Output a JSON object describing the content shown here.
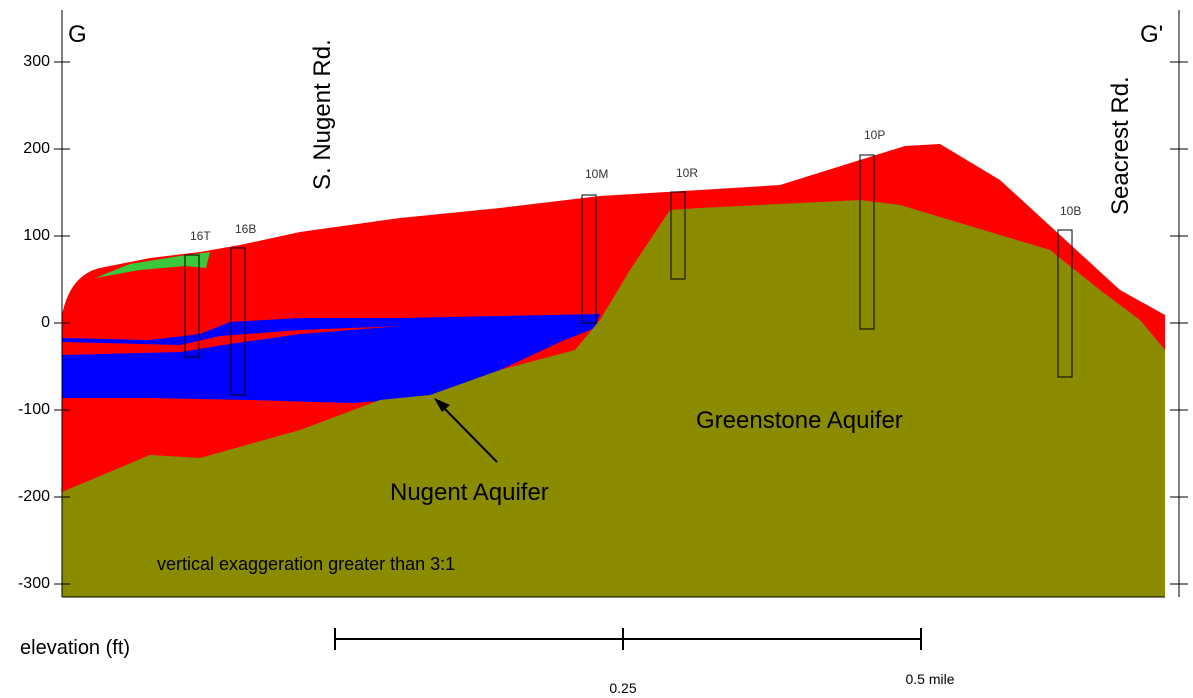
{
  "section": {
    "start_label": "G",
    "end_label": "G'"
  },
  "roads": [
    "S. Nugent Rd.",
    "Seacrest Rd."
  ],
  "elevation_axis": {
    "label": "elevation (ft)",
    "ticks": [
      300,
      200,
      100,
      0,
      -100,
      -200,
      -300
    ]
  },
  "wells": [
    "16T",
    "16B",
    "10M",
    "10R",
    "10P",
    "10B"
  ],
  "units": [
    "Greenstone Aquifer",
    "Nugent Aquifer"
  ],
  "note": "vertical exaggeration greater than 3:1",
  "scale_bar": {
    "labels": [
      "0.25",
      "0.5 mile"
    ]
  }
}
